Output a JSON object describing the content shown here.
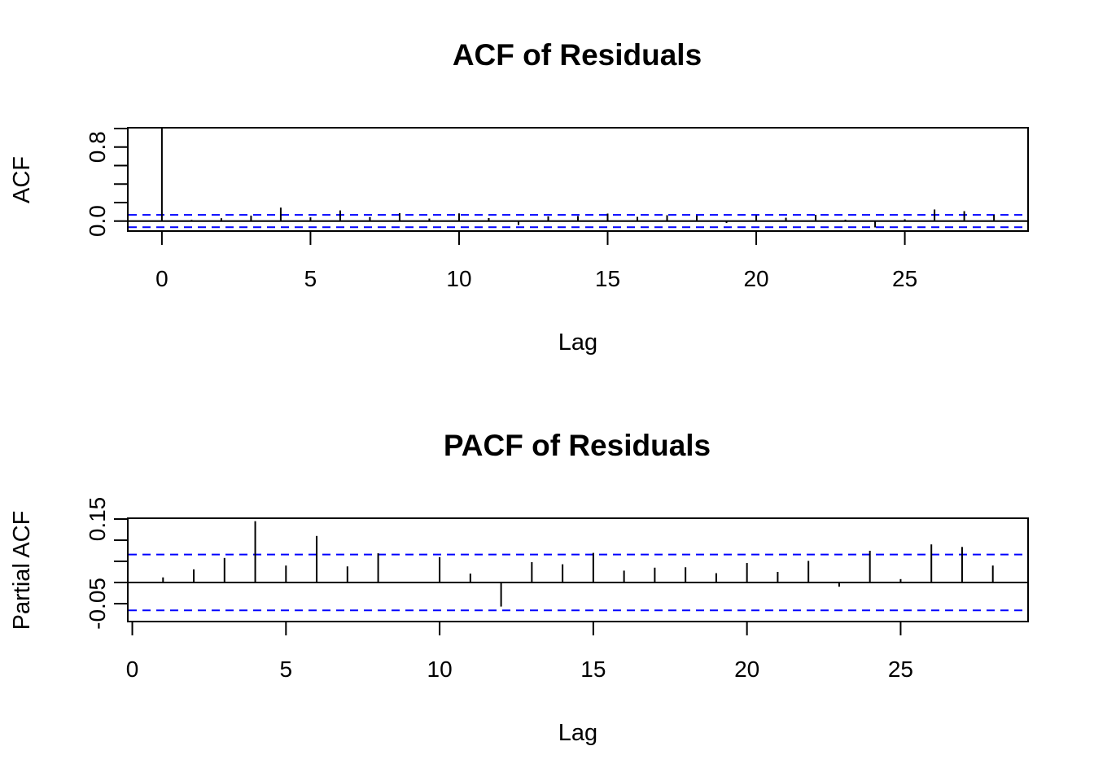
{
  "chart_data": [
    {
      "type": "bar",
      "title": "ACF of Residuals",
      "xlabel": "Lag",
      "ylabel": "ACF",
      "xlim": [
        -1.12,
        29.12
      ],
      "ylim": [
        -0.0995,
        1.0
      ],
      "x_ticks": [
        "0",
        "5",
        "10",
        "15",
        "20",
        "25"
      ],
      "y_ticks": [
        "0.0",
        "0.8"
      ],
      "confidence_bound": 0.066,
      "lags": [
        0,
        1,
        2,
        3,
        4,
        5,
        6,
        7,
        8,
        9,
        10,
        11,
        12,
        13,
        14,
        15,
        16,
        17,
        18,
        19,
        20,
        21,
        22,
        23,
        24,
        25,
        26,
        27,
        28
      ],
      "values": [
        1.0,
        0.012,
        0.031,
        0.058,
        0.145,
        0.04,
        0.115,
        0.043,
        0.085,
        0.027,
        0.083,
        0.033,
        -0.043,
        0.05,
        0.054,
        0.081,
        0.045,
        0.063,
        0.06,
        -0.021,
        0.062,
        0.036,
        0.067,
        0.014,
        -0.069,
        0.019,
        0.125,
        0.107,
        0.068
      ]
    },
    {
      "type": "bar",
      "title": "PACF of Residuals",
      "xlabel": "Lag",
      "ylabel": "Partial ACF",
      "xlim": [
        -0.12,
        29.12
      ],
      "ylim": [
        -0.0905,
        0.15
      ],
      "x_ticks": [
        "0",
        "5",
        "10",
        "15",
        "20",
        "25"
      ],
      "y_ticks": [
        "-0.05",
        "0.15"
      ],
      "confidence_bound": 0.066,
      "lags": [
        1,
        2,
        3,
        4,
        5,
        6,
        7,
        8,
        9,
        10,
        11,
        12,
        13,
        14,
        15,
        16,
        17,
        18,
        19,
        20,
        21,
        22,
        23,
        24,
        25,
        26,
        27,
        28
      ],
      "values": [
        0.012,
        0.031,
        0.058,
        0.145,
        0.04,
        0.11,
        0.038,
        0.069,
        0.0,
        0.06,
        0.021,
        -0.057,
        0.048,
        0.043,
        0.07,
        0.028,
        0.035,
        0.036,
        0.022,
        0.046,
        0.025,
        0.051,
        -0.01,
        0.075,
        0.008,
        0.09,
        0.084,
        0.04
      ]
    }
  ]
}
